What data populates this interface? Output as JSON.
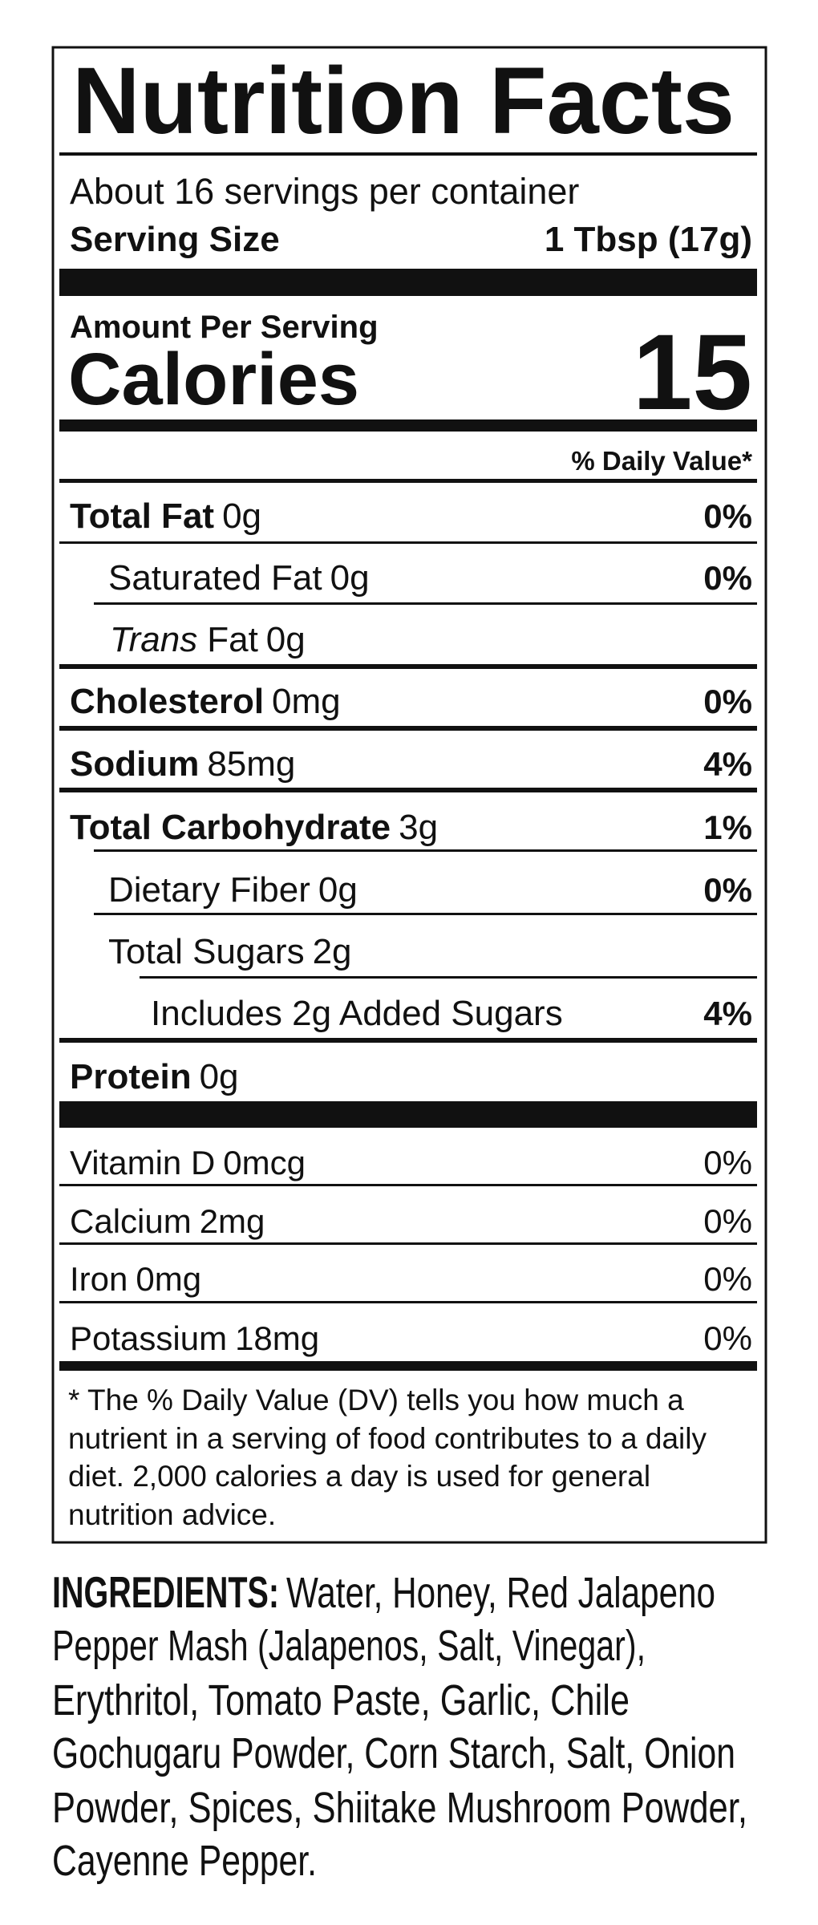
{
  "header": {
    "title": "Nutrition Facts",
    "servings": "About 16 servings per container",
    "serving_size_label": "Serving Size",
    "serving_size": "1 Tbsp (17g)"
  },
  "calories": {
    "amount_label": "Amount Per Serving",
    "label": "Calories",
    "value": "15"
  },
  "daily_value_header": "% Daily Value*",
  "nutrients": [
    {
      "name": "Total Fat",
      "amount": "0g",
      "dv": "0%"
    },
    {
      "name": "Saturated Fat",
      "amount": "0g",
      "dv": "0%"
    },
    {
      "name_italic": "Trans",
      "name": "Fat",
      "amount": "0g"
    },
    {
      "name": "Cholesterol",
      "amount": "0mg",
      "dv": "0%"
    },
    {
      "name": "Sodium",
      "amount": "85mg",
      "dv": "4%"
    },
    {
      "name": "Total Carbohydrate",
      "amount": "3g",
      "dv": "1%"
    },
    {
      "name": "Dietary Fiber",
      "amount": "0g",
      "dv": "0%"
    },
    {
      "name": "Total Sugars",
      "amount": "2g"
    },
    {
      "name": "Includes 2g Added Sugars",
      "dv": "4%"
    },
    {
      "name": "Protein",
      "amount": "0g"
    }
  ],
  "vitamins": [
    {
      "name": "Vitamin D",
      "amount": "0mcg",
      "dv": "0%"
    },
    {
      "name": "Calcium",
      "amount": "2mg",
      "dv": "0%"
    },
    {
      "name": "Iron",
      "amount": "0mg",
      "dv": "0%"
    },
    {
      "name": "Potassium",
      "amount": "18mg",
      "dv": "0%"
    }
  ],
  "footnote": [
    "* The % Daily Value (DV) tells you how much a",
    "nutrient in a serving of food contributes to a daily",
    "diet. 2,000 calories a day is used for general",
    "nutrition advice."
  ],
  "ingredients": {
    "label": "INGREDIENTS:",
    "lines": [
      "Water, Honey, Red Jalapeno",
      "Pepper Mash (Jalapenos, Salt, Vinegar),",
      "Erythritol, Tomato Paste, Garlic, Chile",
      "Gochugaru Powder, Corn Starch, Salt, Onion",
      "Powder, Spices, Shiitake Mushroom Powder,",
      "Cayenne Pepper."
    ]
  }
}
